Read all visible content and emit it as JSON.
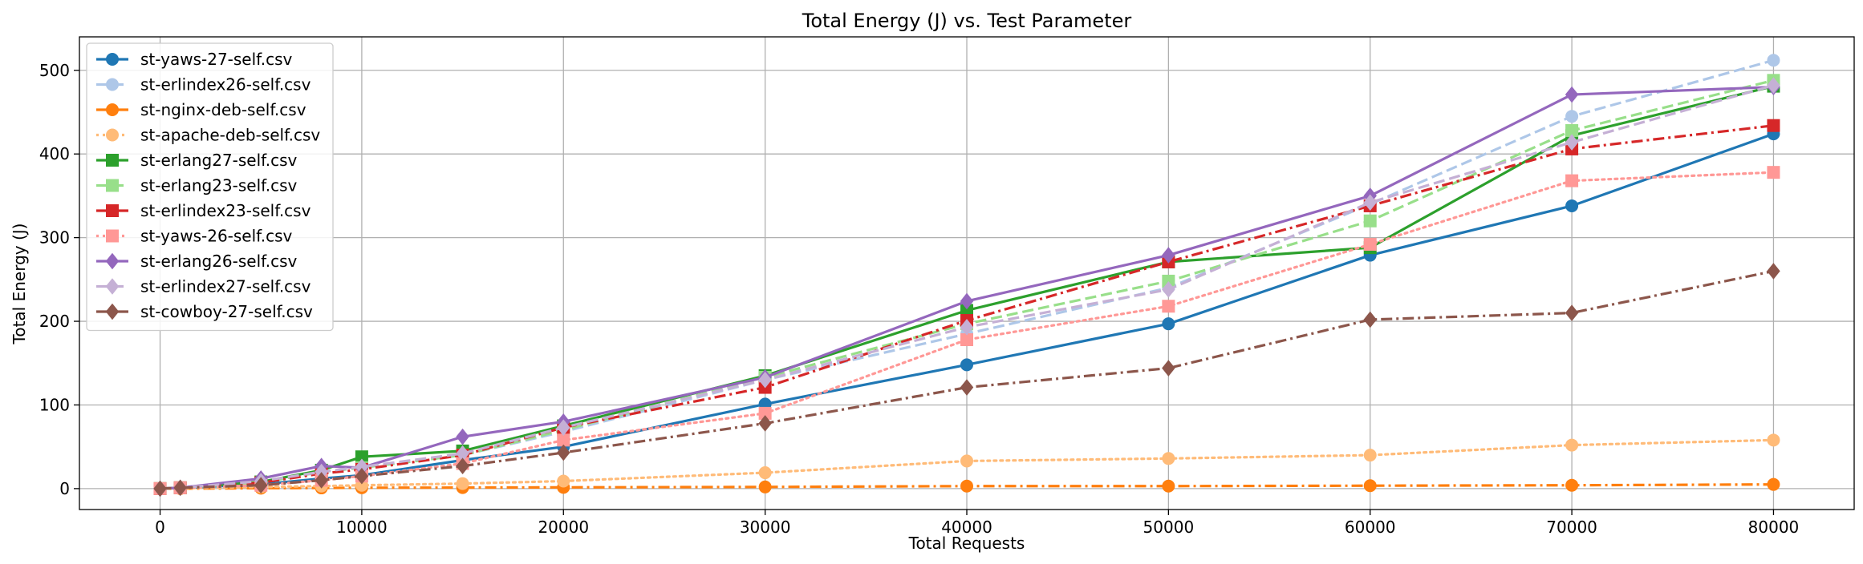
{
  "chart_data": {
    "type": "line",
    "title": "Total Energy (J) vs. Test Parameter",
    "xlabel": "Total Requests",
    "ylabel": "Total Energy (J)",
    "xlim": [
      -4000,
      84000
    ],
    "ylim": [
      -25,
      540
    ],
    "xticks": [
      0,
      10000,
      20000,
      30000,
      40000,
      50000,
      60000,
      70000,
      80000
    ],
    "yticks": [
      0,
      100,
      200,
      300,
      400,
      500
    ],
    "grid": true,
    "legend_position": "upper-left",
    "series": [
      {
        "name": "st-yaws-27-self.csv",
        "color": "#1f77b4",
        "dash": "solid",
        "marker": "circle",
        "x": [
          0,
          1000,
          5000,
          8000,
          10000,
          15000,
          20000,
          30000,
          40000,
          50000,
          60000,
          70000,
          80000
        ],
        "y": [
          0,
          1,
          5,
          12,
          16,
          34,
          50,
          101,
          148,
          197,
          279,
          338,
          424
        ]
      },
      {
        "name": "st-erlindex26-self.csv",
        "color": "#aec7e8",
        "dash": "dashed",
        "marker": "circle",
        "x": [
          0,
          1000,
          5000,
          8000,
          10000,
          15000,
          20000,
          30000,
          40000,
          50000,
          60000,
          70000,
          80000
        ],
        "y": [
          0,
          1,
          8,
          20,
          25,
          40,
          68,
          130,
          185,
          240,
          340,
          445,
          512
        ]
      },
      {
        "name": "st-nginx-deb-self.csv",
        "color": "#ff7f0e",
        "dash": "dashdot",
        "marker": "circle",
        "x": [
          0,
          1000,
          5000,
          8000,
          10000,
          15000,
          20000,
          30000,
          40000,
          50000,
          60000,
          70000,
          80000
        ],
        "y": [
          0,
          0,
          0.5,
          0.8,
          1,
          1.2,
          1.5,
          2,
          3,
          3,
          3.5,
          4,
          5
        ]
      },
      {
        "name": "st-apache-deb-self.csv",
        "color": "#ffbb78",
        "dash": "dotted",
        "marker": "circle",
        "x": [
          0,
          1000,
          5000,
          8000,
          10000,
          15000,
          20000,
          30000,
          40000,
          50000,
          60000,
          70000,
          80000
        ],
        "y": [
          0,
          0.5,
          2,
          3,
          4,
          6,
          9,
          19,
          33,
          36,
          40,
          52,
          58
        ]
      },
      {
        "name": "st-erlang27-self.csv",
        "color": "#2ca02c",
        "dash": "solid",
        "marker": "square",
        "x": [
          0,
          1000,
          5000,
          8000,
          10000,
          15000,
          20000,
          30000,
          40000,
          50000,
          60000,
          70000,
          80000
        ],
        "y": [
          0,
          1,
          8,
          22,
          38,
          45,
          75,
          135,
          213,
          271,
          288,
          422,
          481
        ]
      },
      {
        "name": "st-erlang23-self.csv",
        "color": "#98df8a",
        "dash": "dashed",
        "marker": "square",
        "x": [
          0,
          1000,
          5000,
          8000,
          10000,
          15000,
          20000,
          30000,
          40000,
          50000,
          60000,
          70000,
          80000
        ],
        "y": [
          0,
          1,
          7,
          20,
          25,
          40,
          70,
          133,
          197,
          248,
          320,
          428,
          488
        ]
      },
      {
        "name": "st-erlindex23-self.csv",
        "color": "#d62728",
        "dash": "dashdot",
        "marker": "square",
        "x": [
          0,
          1000,
          5000,
          8000,
          10000,
          15000,
          20000,
          30000,
          40000,
          50000,
          60000,
          70000,
          80000
        ],
        "y": [
          0,
          1,
          7,
          18,
          23,
          40,
          73,
          121,
          201,
          271,
          338,
          406,
          434
        ]
      },
      {
        "name": "st-yaws-26-self.csv",
        "color": "#ff9896",
        "dash": "dotted",
        "marker": "square",
        "x": [
          0,
          1000,
          5000,
          8000,
          10000,
          15000,
          20000,
          30000,
          40000,
          50000,
          60000,
          70000,
          80000
        ],
        "y": [
          0,
          1,
          4,
          10,
          15,
          30,
          58,
          90,
          178,
          218,
          292,
          368,
          378
        ]
      },
      {
        "name": "st-erlang26-self.csv",
        "color": "#9467bd",
        "dash": "solid",
        "marker": "diamond",
        "x": [
          0,
          1000,
          5000,
          8000,
          10000,
          15000,
          20000,
          30000,
          40000,
          50000,
          60000,
          70000,
          80000
        ],
        "y": [
          0,
          1,
          12,
          27,
          25,
          62,
          80,
          133,
          224,
          279,
          350,
          471,
          480
        ]
      },
      {
        "name": "st-erlindex27-self.csv",
        "color": "#c5b0d5",
        "dash": "dashed",
        "marker": "diamond",
        "x": [
          0,
          1000,
          5000,
          8000,
          10000,
          15000,
          20000,
          30000,
          40000,
          50000,
          60000,
          70000,
          80000
        ],
        "y": [
          0,
          1,
          9,
          20,
          26,
          42,
          73,
          130,
          193,
          238,
          342,
          414,
          482
        ]
      },
      {
        "name": "st-cowboy-27-self.csv",
        "color": "#8c564b",
        "dash": "dashdot",
        "marker": "diamond",
        "x": [
          0,
          1000,
          5000,
          8000,
          10000,
          15000,
          20000,
          30000,
          40000,
          50000,
          60000,
          70000,
          80000
        ],
        "y": [
          0,
          1,
          4,
          10,
          15,
          27,
          43,
          78,
          121,
          144,
          202,
          210,
          260
        ]
      }
    ]
  }
}
